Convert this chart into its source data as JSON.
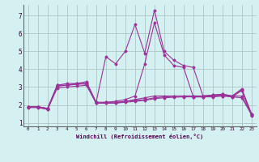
{
  "xlabel": "Windchill (Refroidissement éolien,°C)",
  "bg_color": "#d4f0f0",
  "line_color": "#993399",
  "grid_color": "#aabbbb",
  "xlim": [
    -0.5,
    23.5
  ],
  "ylim": [
    0.8,
    7.6
  ],
  "xticks": [
    0,
    1,
    2,
    3,
    4,
    5,
    6,
    7,
    8,
    9,
    10,
    11,
    12,
    13,
    14,
    15,
    16,
    17,
    18,
    19,
    20,
    21,
    22,
    23
  ],
  "yticks": [
    1,
    2,
    3,
    4,
    5,
    6,
    7
  ],
  "lines": [
    [
      1.9,
      1.9,
      1.8,
      3.1,
      3.1,
      3.2,
      3.2,
      2.1,
      2.1,
      2.1,
      2.2,
      2.3,
      2.4,
      2.5,
      2.5,
      2.5,
      2.5,
      2.5,
      2.5,
      2.55,
      2.6,
      2.5,
      2.9,
      1.5
    ],
    [
      1.9,
      1.9,
      1.75,
      3.05,
      3.1,
      3.15,
      3.2,
      2.1,
      2.15,
      2.15,
      2.2,
      2.25,
      2.3,
      2.4,
      2.45,
      2.48,
      2.5,
      2.5,
      2.5,
      2.55,
      2.6,
      2.5,
      2.85,
      1.45
    ],
    [
      1.85,
      1.85,
      1.75,
      2.95,
      3.0,
      3.05,
      3.1,
      2.1,
      2.1,
      2.1,
      2.15,
      2.2,
      2.25,
      2.35,
      2.4,
      2.43,
      2.45,
      2.45,
      2.45,
      2.5,
      2.55,
      2.45,
      2.8,
      1.4
    ],
    [
      1.9,
      1.9,
      1.8,
      3.1,
      3.2,
      3.2,
      3.3,
      2.15,
      4.7,
      4.3,
      5.0,
      6.5,
      4.9,
      7.3,
      5.0,
      4.5,
      4.2,
      4.1,
      2.5,
      2.5,
      2.5,
      2.5,
      2.5,
      1.5
    ],
    [
      1.9,
      1.9,
      1.8,
      3.1,
      3.1,
      3.2,
      3.15,
      2.15,
      2.15,
      2.2,
      2.3,
      2.5,
      4.3,
      6.6,
      4.8,
      4.2,
      4.1,
      2.45,
      2.45,
      2.45,
      2.5,
      2.45,
      2.4,
      1.45
    ]
  ]
}
